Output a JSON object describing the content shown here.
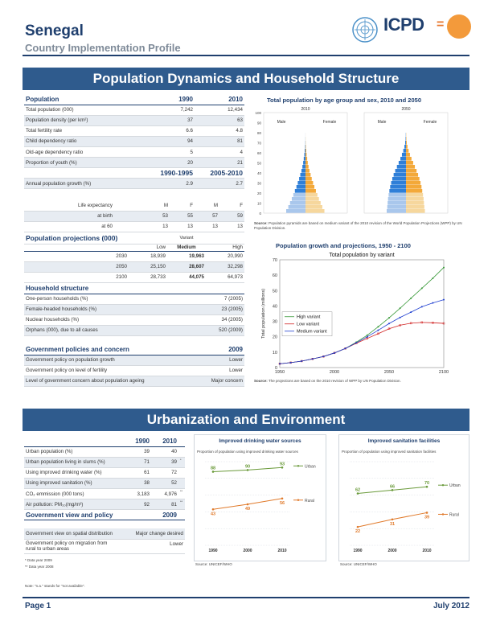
{
  "header": {
    "country": "Senegal",
    "subtitle": "Country Implementation Profile",
    "logo_text": "ICPD",
    "logo_eq": "="
  },
  "section1_title": "Population Dynamics and Household Structure",
  "section2_title": "Urbanization and Environment",
  "population_table": {
    "header": [
      "Population",
      "1990",
      "2010"
    ],
    "rows": [
      [
        "Total population (000)",
        "7,242",
        "12,434"
      ],
      [
        "Population density (per km²)",
        "37",
        "63"
      ],
      [
        "Total fertility rate",
        "6.6",
        "4.8"
      ],
      [
        "Child dependency ratio",
        "94",
        "81"
      ],
      [
        "Old-age dependency ratio",
        "5",
        "4"
      ],
      [
        "Proportion of youth (%)",
        "20",
        "21"
      ]
    ],
    "period_header": [
      "1990-1995",
      "2005-2010"
    ],
    "growth_row": [
      "Annual population growth (%)",
      "2.9",
      "2.7"
    ],
    "le_row": [
      "Life expectancy",
      "M",
      "F",
      "M",
      "F"
    ],
    "birth_row": [
      "at birth",
      "53",
      "55",
      "57",
      "59"
    ],
    "sixty_row": [
      "at 60",
      "13",
      "13",
      "13",
      "13"
    ]
  },
  "projections": {
    "title": "Population projections (000)",
    "variant_label": "Variant",
    "variants": [
      "Low",
      "Medium",
      "High"
    ],
    "rows": [
      [
        "2030",
        "18,939",
        "19,963",
        "20,990"
      ],
      [
        "2050",
        "25,150",
        "28,607",
        "32,298"
      ],
      [
        "2100",
        "28,733",
        "44,075",
        "64,973"
      ]
    ]
  },
  "household": {
    "title": "Household structure",
    "rows": [
      [
        "One-person households (%)",
        "7 (2005)"
      ],
      [
        "Female-headed households (%)",
        "23 (2005)"
      ],
      [
        "Nuclear households (%)",
        "34 (2005)"
      ],
      [
        "Orphans (000), due to all causes",
        "520 (2009)"
      ]
    ]
  },
  "policies": {
    "title": "Government policies and concern",
    "year": "2009",
    "rows": [
      [
        "Government policy on population growth",
        "Lower"
      ],
      [
        "Government policy on level of fertility",
        "Lower"
      ],
      [
        "Level of government concern about population ageing",
        "Major concern"
      ]
    ]
  },
  "pyramid": {
    "title": "Total population by age group and sex, 2010 and 2050",
    "years": [
      "2010",
      "2050"
    ],
    "male_label": "Male",
    "female_label": "Female",
    "age_ticks": [
      "100",
      "90",
      "80",
      "70",
      "60",
      "50",
      "40",
      "30",
      "20",
      "10",
      "0"
    ],
    "source_label": "Source:",
    "source": "Population pyramids are based on medium variant of the 2010 revision of the World Population Projections (WPP) by UN Population Division."
  },
  "pyramid_data": {
    "y2010": [
      1.0,
      0.89,
      0.8,
      0.71,
      0.63,
      0.55,
      0.47,
      0.4,
      0.33,
      0.27,
      0.21,
      0.16,
      0.12,
      0.09,
      0.06,
      0.04,
      0.02,
      0.01,
      0.005,
      0.002
    ],
    "y2050": [
      1.0,
      0.97,
      0.95,
      0.93,
      0.9,
      0.86,
      0.82,
      0.77,
      0.71,
      0.64,
      0.56,
      0.47,
      0.38,
      0.29,
      0.21,
      0.14,
      0.08,
      0.04,
      0.02,
      0.01
    ]
  },
  "chart_data": [
    {
      "type": "line",
      "title": "Population growth and projections, 1950 - 2100",
      "subtitle": "Total population by variant",
      "ylabel": "Total population (millions)",
      "xlim": [
        1950,
        2100
      ],
      "ylim": [
        0,
        70
      ],
      "x_ticks": [
        1950,
        2000,
        2050,
        2100
      ],
      "y_ticks": [
        0,
        10,
        20,
        30,
        40,
        50,
        60,
        70
      ],
      "legend": "left",
      "x": [
        1950,
        1960,
        1970,
        1980,
        1990,
        2000,
        2010,
        2020,
        2030,
        2040,
        2050,
        2060,
        2070,
        2080,
        2090,
        2100
      ],
      "series": [
        {
          "name": "High variant",
          "color": "#3a9a3a",
          "values": [
            2.5,
            3.2,
            4.2,
            5.6,
            7.2,
            9.5,
            12.4,
            16.5,
            21.0,
            26.5,
            32.3,
            38.5,
            45.0,
            51.5,
            58.0,
            65.0
          ]
        },
        {
          "name": "Low variant",
          "color": "#d02020",
          "values": [
            2.5,
            3.2,
            4.2,
            5.6,
            7.2,
            9.5,
            12.4,
            15.8,
            18.9,
            22.0,
            25.2,
            27.5,
            28.8,
            29.3,
            29.1,
            28.7
          ]
        },
        {
          "name": "Medium variant",
          "color": "#1f3fd0",
          "values": [
            2.5,
            3.2,
            4.2,
            5.6,
            7.2,
            9.5,
            12.4,
            16.1,
            20.0,
            24.2,
            28.6,
            32.5,
            36.0,
            39.5,
            42.0,
            44.1
          ]
        }
      ],
      "source_label": "Source:",
      "source": "The projections are based on the 2010 revision of WPP by UN Population Division."
    },
    {
      "type": "line",
      "title": "Improved drinking water sources",
      "subtitle": "Proportion of population using improved drinking water sources",
      "categories": [
        "1990",
        "2000",
        "2010"
      ],
      "series": [
        {
          "name": "Urban",
          "color": "#6a9a3a",
          "values": [
            88,
            90,
            93
          ]
        },
        {
          "name": "Rural",
          "color": "#e07a2b",
          "values": [
            43,
            49,
            56
          ]
        }
      ],
      "ylim": [
        0,
        100
      ],
      "source": "Source: UNICEF/WHO"
    },
    {
      "type": "line",
      "title": "Improved sanitation facilities",
      "subtitle": "Proportion of population using improved sanitation facilities",
      "categories": [
        "1990",
        "2000",
        "2010"
      ],
      "series": [
        {
          "name": "Urban",
          "color": "#6a9a3a",
          "values": [
            62,
            66,
            70
          ]
        },
        {
          "name": "Rural",
          "color": "#e07a2b",
          "values": [
            22,
            31,
            39
          ]
        }
      ],
      "ylim": [
        0,
        100
      ],
      "source": "Source: UNICEF/WHO"
    }
  ],
  "urban_table": {
    "header": [
      "",
      "1990",
      "2010"
    ],
    "rows": [
      [
        "Urban population (%)",
        "39",
        "40",
        ""
      ],
      [
        "Urban population living in slums (%)",
        "71",
        "39",
        "*"
      ],
      [
        "Using improved drinking water (%)",
        "61",
        "72",
        ""
      ],
      [
        "Using improved sanitation (%)",
        "38",
        "52",
        ""
      ],
      [
        "CO₂ emmission (000 tons)",
        "3,183",
        "4,976",
        "**"
      ],
      [
        "Air pollution: PM₁₀(mg/m³)",
        "92",
        "81",
        "**"
      ]
    ],
    "view_title": "Government view and policy",
    "view_year": "2009",
    "view_rows": [
      [
        "Government view on spatial distribution",
        "Major change desired"
      ],
      [
        "Government policy on migration from rural to urban areas",
        "Lower"
      ]
    ],
    "notes": [
      "* Data year 2009",
      "** Data year 2008"
    ],
    "na_note": "Note: \"n.a.\" stands for \"not available\"."
  },
  "footer": {
    "page": "Page 1",
    "date": "July 2012"
  }
}
